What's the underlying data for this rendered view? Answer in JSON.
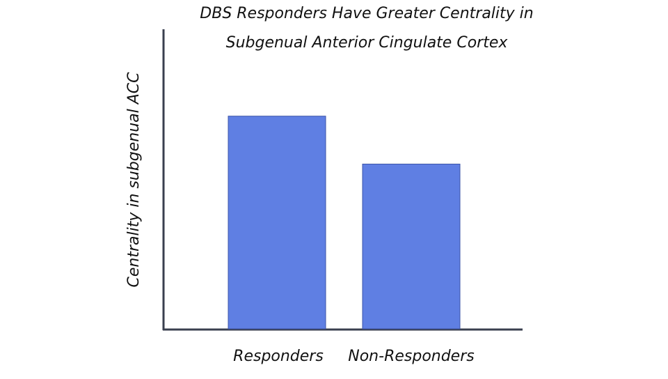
{
  "chart_data": {
    "type": "bar",
    "title": [
      "DBS Responders Have Greater Centrality in",
      "Subgenual Anterior Cingulate Cortex"
    ],
    "y_label": "Centrality in subgenual ACC",
    "categories": [
      "Responders",
      "Non-Responders"
    ],
    "values": [
      71,
      55
    ],
    "color": "#5f7fe3",
    "ylim": [
      0,
      100
    ]
  }
}
